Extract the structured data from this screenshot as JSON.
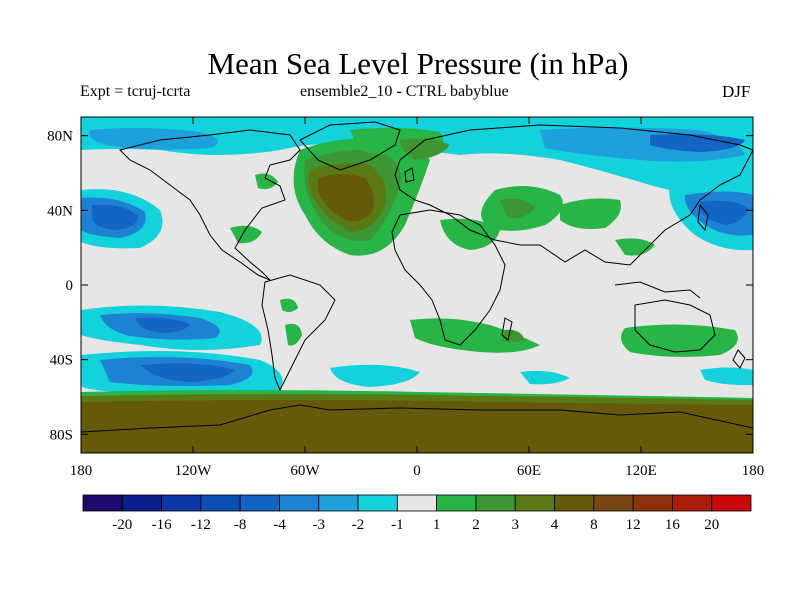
{
  "title": "Mean Sea Level Pressure (in hPa)",
  "subtitle_left": "Expt = tcruj-tcrta",
  "subtitle_center": "ensemble2_10 - CTRL babyblue",
  "subtitle_right": "DJF",
  "lat_ticks": [
    {
      "value": 80,
      "label": "80N"
    },
    {
      "value": 40,
      "label": "40N"
    },
    {
      "value": 0,
      "label": "0"
    },
    {
      "value": -40,
      "label": "40S"
    },
    {
      "value": -80,
      "label": "80S"
    }
  ],
  "lon_ticks": [
    {
      "value": -180,
      "label": "180"
    },
    {
      "value": -120,
      "label": "120W"
    },
    {
      "value": -60,
      "label": "60W"
    },
    {
      "value": 0,
      "label": "0"
    },
    {
      "value": 60,
      "label": "60E"
    },
    {
      "value": 120,
      "label": "120E"
    },
    {
      "value": 180,
      "label": "180"
    }
  ],
  "colorbar": {
    "colors": [
      "#1e0a6e",
      "#0a1e8c",
      "#0a37a5",
      "#0a50b4",
      "#1464c3",
      "#1e82d2",
      "#1ea0dc",
      "#14d2dc",
      "#e6e6e6",
      "#28b446",
      "#3c9632",
      "#5a7814",
      "#645a0a",
      "#784614",
      "#8c320a",
      "#aa1e0a",
      "#c80a0a"
    ],
    "labels": [
      "-20",
      "-16",
      "-12",
      "-8",
      "-4",
      "-3",
      "-2",
      "-1",
      "1",
      "2",
      "3",
      "4",
      "8",
      "12",
      "16",
      "20"
    ]
  },
  "palette": {
    "neutral": "#e6e6e6",
    "cyan": "#14d2dc",
    "light_blue": "#1ea0dc",
    "blue": "#1e82d2",
    "mid_blue": "#1464c3",
    "green": "#28b446",
    "dark_green": "#3c9632",
    "olive": "#5a7814",
    "brown": "#645a0a"
  }
}
